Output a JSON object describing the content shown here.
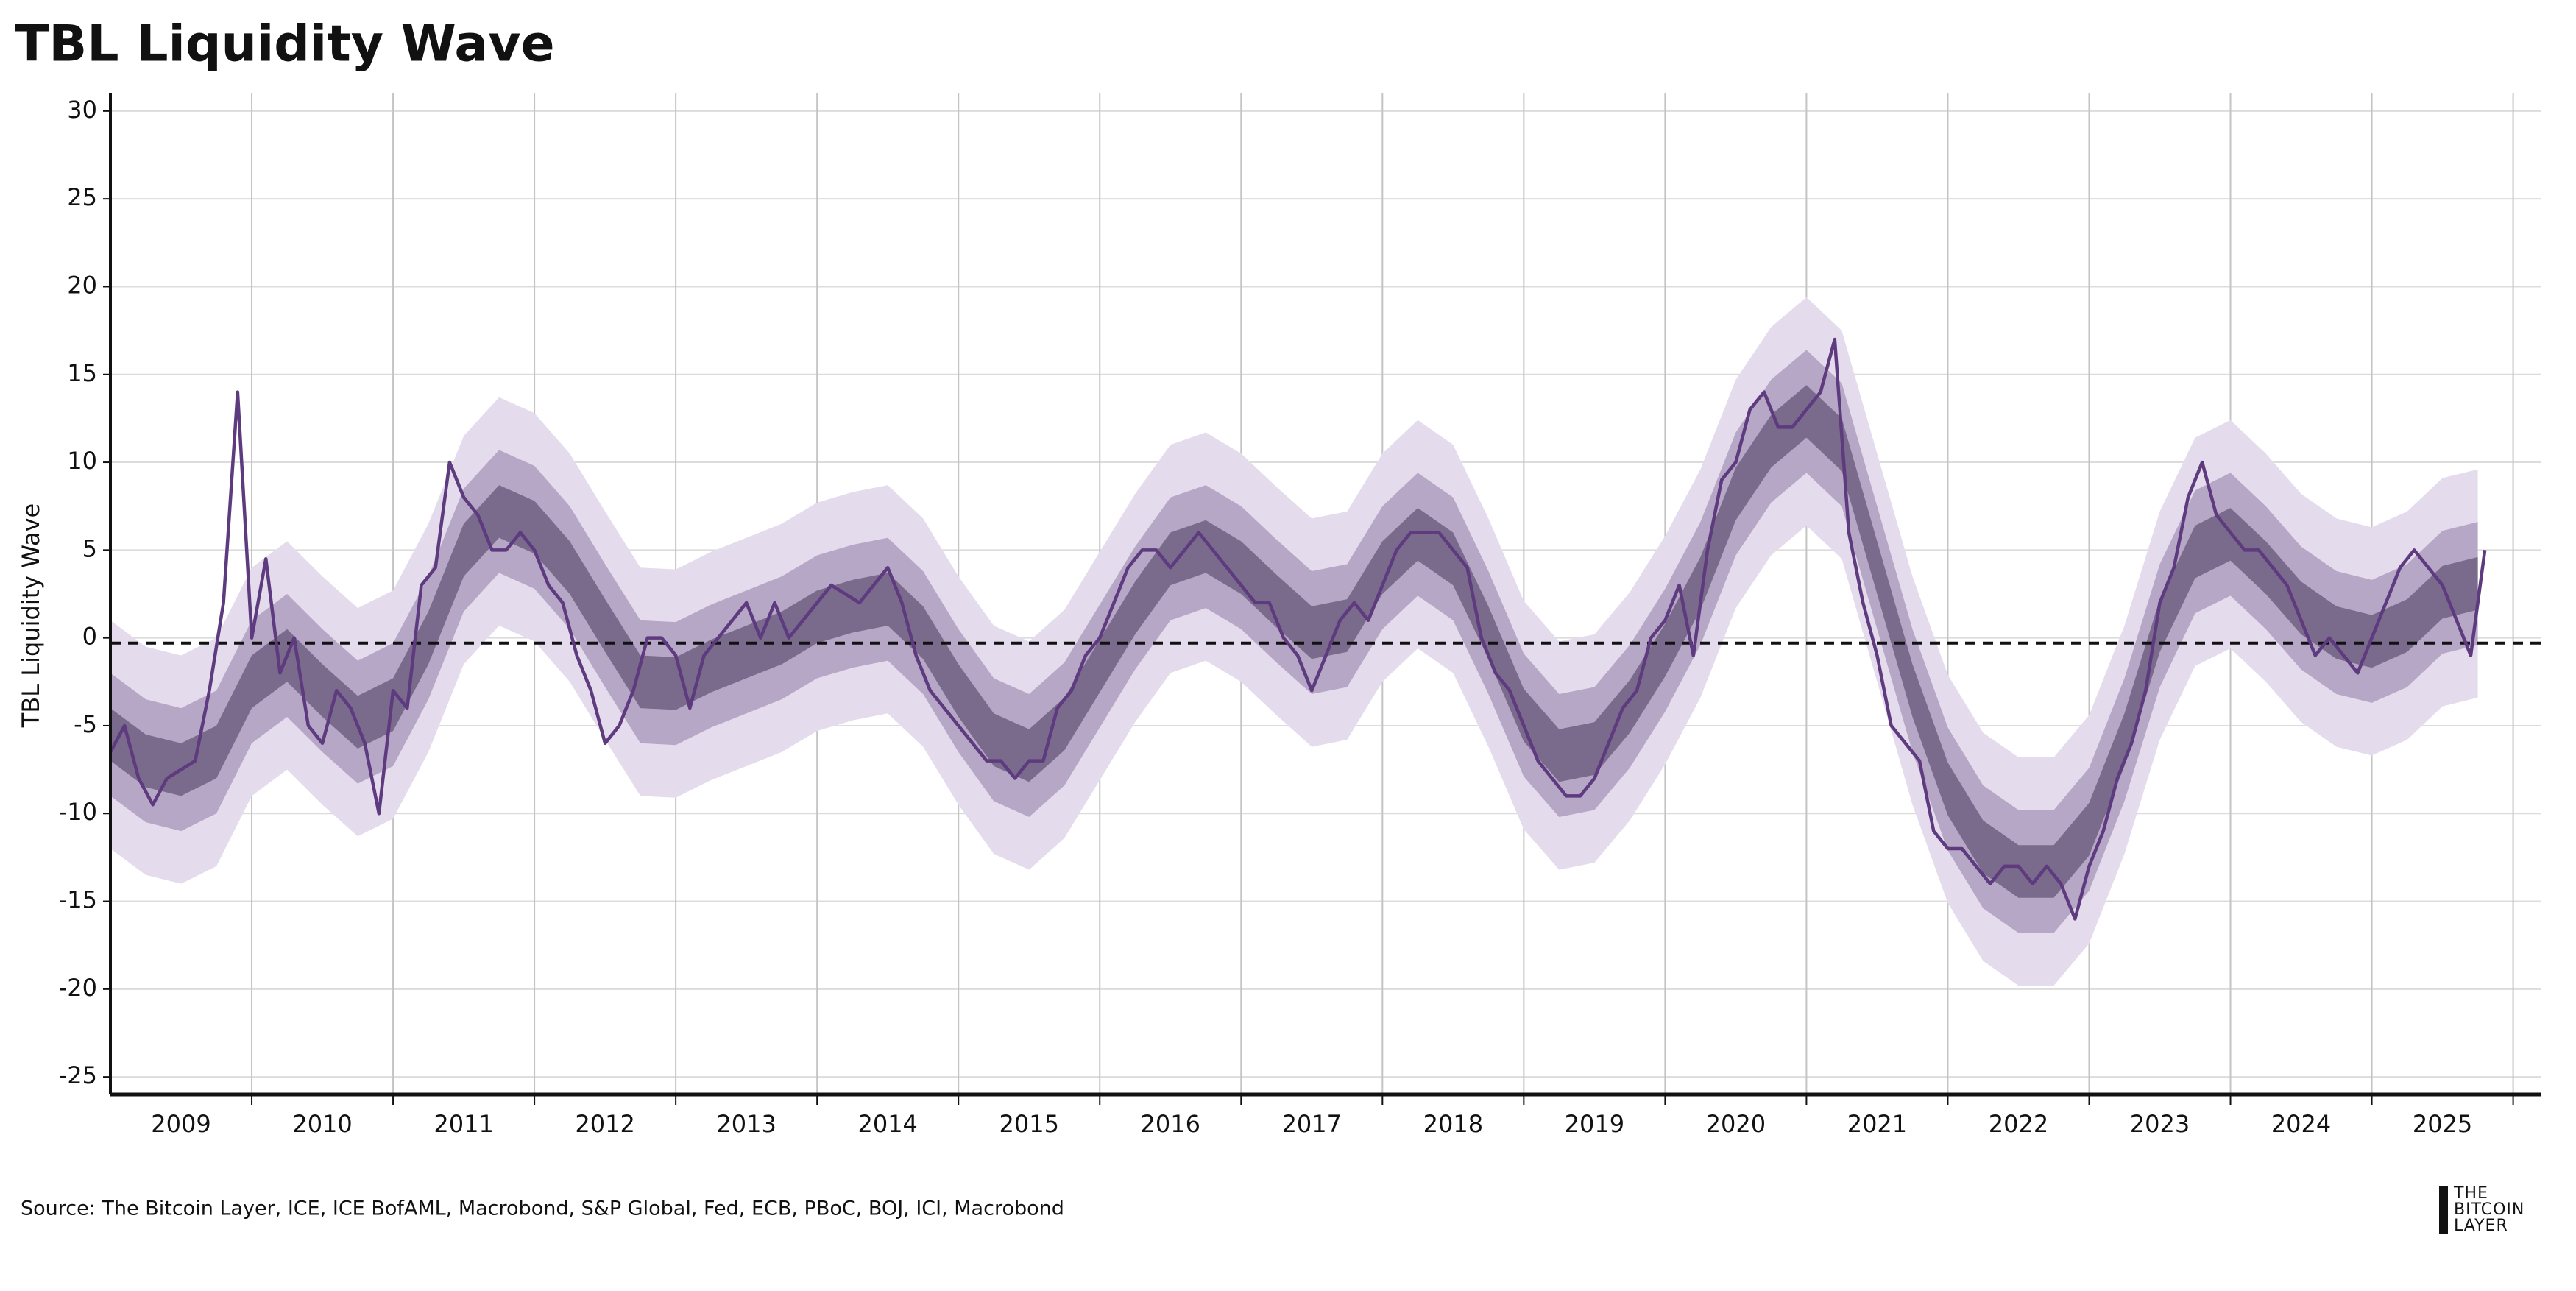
{
  "chart_data": {
    "type": "line",
    "title": "TBL Liquidity Wave",
    "y_label": "TBL Liquidity Wave",
    "source": "Source: The Bitcoin Layer, ICE, ICE BofAML, Macrobond, S&P Global, Fed, ECB, PBoC, BOJ, ICI, Macrobond",
    "logo": [
      "THE",
      "BITCOIN",
      "LAYER"
    ],
    "xlim": [
      2009.0,
      2026.2
    ],
    "ylim": [
      -26,
      31
    ],
    "yticks": [
      -25,
      -20,
      -15,
      -10,
      -5,
      0,
      5,
      10,
      15,
      20,
      25,
      30
    ],
    "xticks": [
      {
        "value": 2009.5,
        "label": "2009"
      },
      {
        "value": 2010.5,
        "label": "2010"
      },
      {
        "value": 2011.5,
        "label": "2011"
      },
      {
        "value": 2012.5,
        "label": "2012"
      },
      {
        "value": 2013.5,
        "label": "2013"
      },
      {
        "value": 2014.5,
        "label": "2014"
      },
      {
        "value": 2015.5,
        "label": "2015"
      },
      {
        "value": 2016.5,
        "label": "2016"
      },
      {
        "value": 2017.5,
        "label": "2017"
      },
      {
        "value": 2018.5,
        "label": "2018"
      },
      {
        "value": 2019.5,
        "label": "2019"
      },
      {
        "value": 2020.5,
        "label": "2020"
      },
      {
        "value": 2021.5,
        "label": "2021"
      },
      {
        "value": 2022.5,
        "label": "2022"
      },
      {
        "value": 2023.5,
        "label": "2023"
      },
      {
        "value": 2024.5,
        "label": "2024"
      },
      {
        "value": 2025.5,
        "label": "2025"
      }
    ],
    "grid": true,
    "reference_line": {
      "value": -0.3,
      "color": "#111111"
    },
    "color": "#5e3a7e",
    "x": [
      2009.0,
      2009.1,
      2009.2,
      2009.3,
      2009.4,
      2009.5,
      2009.6,
      2009.7,
      2009.8,
      2009.9,
      2010.0,
      2010.1,
      2010.2,
      2010.3,
      2010.4,
      2010.5,
      2010.6,
      2010.7,
      2010.8,
      2010.9,
      2011.0,
      2011.1,
      2011.2,
      2011.3,
      2011.4,
      2011.5,
      2011.6,
      2011.7,
      2011.8,
      2011.9,
      2012.0,
      2012.1,
      2012.2,
      2012.3,
      2012.4,
      2012.5,
      2012.6,
      2012.7,
      2012.8,
      2012.9,
      2013.0,
      2013.1,
      2013.2,
      2013.3,
      2013.4,
      2013.5,
      2013.6,
      2013.7,
      2013.8,
      2013.9,
      2014.0,
      2014.1,
      2014.2,
      2014.3,
      2014.4,
      2014.5,
      2014.6,
      2014.7,
      2014.8,
      2014.9,
      2015.0,
      2015.1,
      2015.2,
      2015.3,
      2015.4,
      2015.5,
      2015.6,
      2015.7,
      2015.8,
      2015.9,
      2016.0,
      2016.1,
      2016.2,
      2016.3,
      2016.4,
      2016.5,
      2016.6,
      2016.7,
      2016.8,
      2016.9,
      2017.0,
      2017.1,
      2017.2,
      2017.3,
      2017.4,
      2017.5,
      2017.6,
      2017.7,
      2017.8,
      2017.9,
      2018.0,
      2018.1,
      2018.2,
      2018.3,
      2018.4,
      2018.5,
      2018.6,
      2018.7,
      2018.8,
      2018.9,
      2019.0,
      2019.1,
      2019.2,
      2019.3,
      2019.4,
      2019.5,
      2019.6,
      2019.7,
      2019.8,
      2019.9,
      2020.0,
      2020.1,
      2020.2,
      2020.3,
      2020.4,
      2020.5,
      2020.6,
      2020.7,
      2020.8,
      2020.9,
      2021.0,
      2021.1,
      2021.2,
      2021.3,
      2021.4,
      2021.5,
      2021.6,
      2021.7,
      2021.8,
      2021.9,
      2022.0,
      2022.1,
      2022.2,
      2022.3,
      2022.4,
      2022.5,
      2022.6,
      2022.7,
      2022.8,
      2022.9,
      2023.0,
      2023.1,
      2023.2,
      2023.3,
      2023.4,
      2023.5,
      2023.6,
      2023.7,
      2023.8,
      2023.9,
      2024.0,
      2024.1,
      2024.2,
      2024.3,
      2024.4,
      2024.5,
      2024.6,
      2024.7,
      2024.8,
      2024.9,
      2025.0,
      2025.1,
      2025.2,
      2025.3,
      2025.4,
      2025.5,
      2025.6,
      2025.7,
      2025.8
    ],
    "values": [
      -6.5,
      -5,
      -8,
      -9.5,
      -8,
      -7.5,
      -7,
      -3,
      2,
      14,
      0,
      4.5,
      -2,
      0,
      -5,
      -6,
      -3,
      -4,
      -6,
      -10,
      -3,
      -4,
      3,
      4,
      10,
      8,
      7,
      5,
      5,
      6,
      5,
      3,
      2,
      -1,
      -3,
      -6,
      -5,
      -3,
      0,
      0,
      -1,
      -4,
      -1,
      0,
      1,
      2,
      0,
      2,
      0,
      1,
      2,
      3,
      2.5,
      2,
      3,
      4,
      2,
      -1,
      -3,
      -4,
      -5,
      -6,
      -7,
      -7,
      -8,
      -7,
      -7,
      -4,
      -3,
      -1,
      0,
      2,
      4,
      5,
      5,
      4,
      5,
      6,
      5,
      4,
      3,
      2,
      2,
      0,
      -1,
      -3,
      -1,
      1,
      2,
      1,
      3,
      5,
      6,
      6,
      6,
      5,
      4,
      0,
      -2,
      -3,
      -5,
      -7,
      -8,
      -9,
      -9,
      -8,
      -6,
      -4,
      -3,
      0,
      1,
      3,
      -1,
      5,
      9,
      10,
      13,
      14,
      12,
      12,
      13,
      14,
      17,
      6,
      2,
      -1,
      -5,
      -6,
      -7,
      -11,
      -12,
      -12,
      -13,
      -14,
      -13,
      -13,
      -14,
      -13,
      -14,
      -16,
      -13,
      -11,
      -8,
      -6,
      -3,
      2,
      4,
      8,
      10,
      7,
      6,
      5,
      5,
      4,
      3,
      1,
      -1,
      0,
      -1,
      -2,
      0,
      2,
      4,
      5,
      4,
      3,
      1,
      -1,
      5
    ],
    "band_x": [
      2009.0,
      2009.25,
      2009.5,
      2009.75,
      2010.0,
      2010.25,
      2010.5,
      2010.75,
      2011.0,
      2011.25,
      2011.5,
      2011.75,
      2012.0,
      2012.25,
      2012.5,
      2012.75,
      2013.0,
      2013.25,
      2013.5,
      2013.75,
      2014.0,
      2014.25,
      2014.5,
      2014.75,
      2015.0,
      2015.25,
      2015.5,
      2015.75,
      2016.0,
      2016.25,
      2016.5,
      2016.75,
      2017.0,
      2017.25,
      2017.5,
      2017.75,
      2018.0,
      2018.25,
      2018.5,
      2018.75,
      2019.0,
      2019.25,
      2019.5,
      2019.75,
      2020.0,
      2020.25,
      2020.5,
      2020.75,
      2021.0,
      2021.25,
      2021.5,
      2021.75,
      2022.0,
      2022.25,
      2022.5,
      2022.75,
      2023.0,
      2023.25,
      2023.5,
      2023.75,
      2024.0,
      2024.25,
      2024.5,
      2024.75,
      2025.0,
      2025.25,
      2025.5,
      2025.75
    ],
    "bands": [
      {
        "color": "#e4dced",
        "lower": [
          -12,
          -13.5,
          -14,
          -13,
          -9,
          -7.5,
          -9.5,
          -11.3,
          -10.3,
          -6.5,
          -1.5,
          0.7,
          -0.2,
          -2.5,
          -5.8,
          -9,
          -9.1,
          -8.1,
          -7.3,
          -6.5,
          -5.3,
          -4.7,
          -4.3,
          -6.2,
          -9.5,
          -12.3,
          -13.2,
          -11.4,
          -8.1,
          -4.8,
          -2,
          -1.3,
          -2.5,
          -4.4,
          -6.2,
          -5.8,
          -2.5,
          -0.6,
          -2,
          -6.2,
          -10.9,
          -13.2,
          -12.8,
          -10.4,
          -7.2,
          -3.4,
          1.7,
          4.7,
          6.4,
          4.5,
          -2.5,
          -9.5,
          -15.1,
          -18.4,
          -19.8,
          -19.8,
          -17.4,
          -12.3,
          -5.8,
          -1.6,
          -0.6,
          -2.5,
          -4.8,
          -6.2,
          -6.7,
          -5.8,
          -3.9,
          -3.4
        ],
        "upper": [
          1,
          -0.5,
          -1,
          0,
          4,
          5.5,
          3.5,
          1.7,
          2.7,
          6.5,
          11.5,
          13.7,
          12.8,
          10.5,
          7.2,
          4,
          3.9,
          4.9,
          5.7,
          6.5,
          7.7,
          8.3,
          8.7,
          6.8,
          3.5,
          0.7,
          -0.2,
          1.6,
          4.9,
          8.2,
          11,
          11.7,
          10.5,
          8.6,
          6.8,
          7.2,
          10.5,
          12.4,
          11,
          6.8,
          2.1,
          -0.2,
          0.2,
          2.6,
          5.8,
          9.6,
          14.7,
          17.7,
          19.4,
          17.5,
          10.5,
          3.5,
          -2.1,
          -5.4,
          -6.8,
          -6.8,
          -4.4,
          0.7,
          7.2,
          11.4,
          12.4,
          10.5,
          8.2,
          6.8,
          6.3,
          7.2,
          9.1,
          9.6
        ]
      },
      {
        "color": "#b6a7c6",
        "lower": [
          -9,
          -10.5,
          -11,
          -10,
          -6,
          -4.5,
          -6.5,
          -8.3,
          -7.3,
          -3.5,
          1.5,
          3.7,
          2.8,
          0.5,
          -2.8,
          -6,
          -6.1,
          -5.1,
          -4.3,
          -3.5,
          -2.3,
          -1.7,
          -1.3,
          -3.2,
          -6.5,
          -9.3,
          -10.2,
          -8.4,
          -5.1,
          -1.8,
          1,
          1.7,
          0.5,
          -1.4,
          -3.2,
          -2.8,
          0.5,
          2.4,
          1,
          -3.2,
          -7.9,
          -10.2,
          -9.8,
          -7.4,
          -4.2,
          -0.4,
          4.7,
          7.7,
          9.4,
          7.5,
          0.5,
          -6.5,
          -12.1,
          -15.4,
          -16.8,
          -16.8,
          -14.4,
          -9.3,
          -2.8,
          1.4,
          2.4,
          0.5,
          -1.8,
          -3.2,
          -3.7,
          -2.8,
          -0.9,
          -0.4
        ],
        "upper": [
          -2,
          -3.5,
          -4,
          -3,
          1,
          2.5,
          0.5,
          -1.3,
          -0.3,
          3.5,
          8.5,
          10.7,
          9.8,
          7.5,
          4.2,
          1,
          0.9,
          1.9,
          2.7,
          3.5,
          4.7,
          5.3,
          5.7,
          3.8,
          0.5,
          -2.3,
          -3.2,
          -1.4,
          1.9,
          5.2,
          8,
          8.7,
          7.5,
          5.6,
          3.8,
          4.2,
          7.5,
          9.4,
          8,
          3.8,
          -0.9,
          -3.2,
          -2.8,
          -0.4,
          2.8,
          6.6,
          11.7,
          14.7,
          16.4,
          14.5,
          7.5,
          0.5,
          -5.1,
          -8.4,
          -9.8,
          -9.8,
          -7.4,
          -2.3,
          4.2,
          8.4,
          9.4,
          7.5,
          5.2,
          3.8,
          3.3,
          4.2,
          6.1,
          6.6
        ]
      },
      {
        "color": "#7a6b8c",
        "lower": [
          -7,
          -8.5,
          -9,
          -8,
          -4,
          -2.5,
          -4.5,
          -6.3,
          -5.3,
          -1.5,
          3.5,
          5.7,
          4.8,
          2.5,
          -0.8,
          -4,
          -4.1,
          -3.1,
          -2.3,
          -1.5,
          -0.3,
          0.3,
          0.7,
          -1.2,
          -4.5,
          -7.3,
          -8.2,
          -6.4,
          -3.1,
          0.2,
          3,
          3.7,
          2.5,
          0.6,
          -1.2,
          -0.8,
          2.5,
          4.4,
          3,
          -1.2,
          -5.9,
          -8.2,
          -7.8,
          -5.4,
          -2.2,
          1.6,
          6.7,
          9.7,
          11.4,
          9.5,
          2.5,
          -4.5,
          -10.1,
          -13.4,
          -14.8,
          -14.8,
          -12.4,
          -7.3,
          -0.8,
          3.4,
          4.4,
          2.5,
          0.2,
          -1.2,
          -1.7,
          -0.8,
          1.1,
          1.6
        ],
        "upper": [
          -4,
          -5.5,
          -6,
          -5,
          -1,
          0.5,
          -1.5,
          -3.3,
          -2.3,
          1.5,
          6.5,
          8.7,
          7.8,
          5.5,
          2.2,
          -1,
          -1.1,
          -0.1,
          0.7,
          1.5,
          2.7,
          3.3,
          3.7,
          1.8,
          -1.5,
          -4.3,
          -5.2,
          -3.4,
          -0.1,
          3.2,
          6,
          6.7,
          5.5,
          3.6,
          1.8,
          2.2,
          5.5,
          7.4,
          6,
          1.8,
          -2.9,
          -5.2,
          -4.8,
          -2.4,
          0.8,
          4.6,
          9.7,
          12.7,
          14.4,
          12.5,
          5.5,
          -1.5,
          -7.1,
          -10.4,
          -11.8,
          -11.8,
          -9.4,
          -4.3,
          2.2,
          6.4,
          7.4,
          5.5,
          3.2,
          1.8,
          1.3,
          2.2,
          4.1,
          4.6
        ]
      }
    ]
  }
}
